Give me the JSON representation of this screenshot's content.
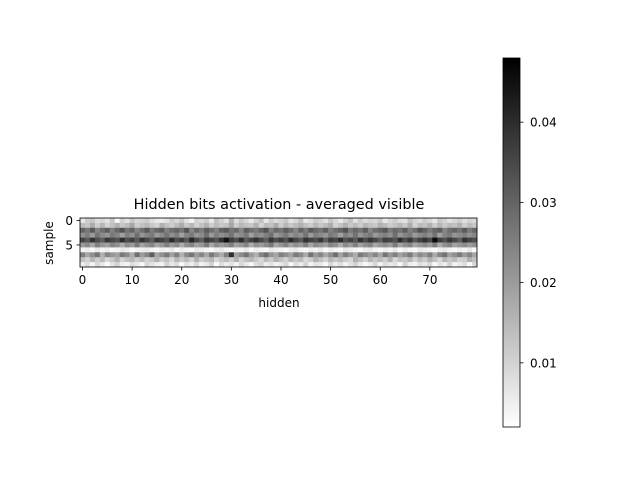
{
  "chart_data": {
    "type": "heatmap",
    "title": "Hidden bits activation - averaged visible",
    "xlabel": "hidden",
    "ylabel": "sample",
    "n_cols": 80,
    "n_rows": 10,
    "xticks": [
      0,
      10,
      20,
      30,
      40,
      50,
      60,
      70
    ],
    "yticks": [
      0,
      5
    ],
    "colormap": "gray_r",
    "value_range": [
      0.002,
      0.048
    ],
    "colorbar_ticks": [
      0.01,
      0.02,
      0.03,
      0.04
    ],
    "colorbar_tick_labels": [
      "0.01",
      "0.02",
      "0.03",
      "0.04"
    ],
    "rows": [
      [
        0.006,
        0.011,
        0.012,
        0.008,
        0.009,
        0.007,
        0.012,
        0.003,
        0.01,
        0.007,
        0.012,
        0.009,
        0.01,
        0.011,
        0.008,
        0.006,
        0.005,
        0.007,
        0.011,
        0.009,
        0.012,
        0.007,
        0.004,
        0.01,
        0.009,
        0.011,
        0.006,
        0.013,
        0.01,
        0.007,
        0.016,
        0.008,
        0.012,
        0.009,
        0.006,
        0.01,
        0.013,
        0.006,
        0.011,
        0.008,
        0.01,
        0.012,
        0.007,
        0.009,
        0.013,
        0.006,
        0.008,
        0.011,
        0.01,
        0.007,
        0.012,
        0.009,
        0.006,
        0.01,
        0.013,
        0.007,
        0.011,
        0.008,
        0.01,
        0.009,
        0.012,
        0.006,
        0.009,
        0.011,
        0.008,
        0.007,
        0.013,
        0.01,
        0.008,
        0.011,
        0.009,
        0.006,
        0.012,
        0.01,
        0.007,
        0.009,
        0.011,
        0.008,
        0.01,
        0.009
      ],
      [
        0.014,
        0.012,
        0.017,
        0.011,
        0.015,
        0.01,
        0.013,
        0.016,
        0.012,
        0.014,
        0.018,
        0.011,
        0.013,
        0.015,
        0.012,
        0.01,
        0.016,
        0.013,
        0.011,
        0.014,
        0.017,
        0.012,
        0.015,
        0.01,
        0.013,
        0.016,
        0.011,
        0.014,
        0.012,
        0.013,
        0.018,
        0.011,
        0.015,
        0.013,
        0.012,
        0.016,
        0.01,
        0.014,
        0.013,
        0.017,
        0.011,
        0.015,
        0.012,
        0.014,
        0.016,
        0.013,
        0.011,
        0.015,
        0.012,
        0.014,
        0.017,
        0.01,
        0.013,
        0.016,
        0.012,
        0.014,
        0.011,
        0.015,
        0.013,
        0.012,
        0.016,
        0.014,
        0.011,
        0.013,
        0.015,
        0.012,
        0.017,
        0.01,
        0.014,
        0.013,
        0.016,
        0.011,
        0.015,
        0.012,
        0.014,
        0.013,
        0.016,
        0.011,
        0.014,
        0.012
      ],
      [
        0.03,
        0.026,
        0.032,
        0.024,
        0.028,
        0.031,
        0.025,
        0.029,
        0.033,
        0.027,
        0.03,
        0.024,
        0.028,
        0.032,
        0.026,
        0.029,
        0.031,
        0.025,
        0.028,
        0.03,
        0.027,
        0.033,
        0.024,
        0.029,
        0.026,
        0.031,
        0.028,
        0.025,
        0.03,
        0.032,
        0.027,
        0.029,
        0.024,
        0.031,
        0.028,
        0.026,
        0.03,
        0.033,
        0.025,
        0.029,
        0.027,
        0.031,
        0.028,
        0.024,
        0.03,
        0.026,
        0.032,
        0.029,
        0.027,
        0.031,
        0.025,
        0.028,
        0.03,
        0.033,
        0.026,
        0.029,
        0.027,
        0.031,
        0.024,
        0.028,
        0.03,
        0.032,
        0.026,
        0.029,
        0.027,
        0.031,
        0.025,
        0.028,
        0.033,
        0.03,
        0.026,
        0.029,
        0.031,
        0.024,
        0.028,
        0.03,
        0.027,
        0.032,
        0.026,
        0.029
      ],
      [
        0.022,
        0.025,
        0.02,
        0.027,
        0.023,
        0.021,
        0.026,
        0.024,
        0.019,
        0.025,
        0.022,
        0.028,
        0.021,
        0.024,
        0.026,
        0.02,
        0.023,
        0.027,
        0.022,
        0.025,
        0.019,
        0.024,
        0.026,
        0.021,
        0.023,
        0.028,
        0.02,
        0.025,
        0.022,
        0.024,
        0.027,
        0.021,
        0.023,
        0.026,
        0.019,
        0.024,
        0.022,
        0.025,
        0.028,
        0.02,
        0.023,
        0.026,
        0.021,
        0.024,
        0.022,
        0.027,
        0.02,
        0.025,
        0.023,
        0.021,
        0.026,
        0.024,
        0.019,
        0.025,
        0.022,
        0.027,
        0.021,
        0.024,
        0.026,
        0.02,
        0.023,
        0.025,
        0.022,
        0.028,
        0.021,
        0.024,
        0.026,
        0.02,
        0.023,
        0.025,
        0.022,
        0.027,
        0.019,
        0.024,
        0.026,
        0.021,
        0.023,
        0.025,
        0.022,
        0.024
      ],
      [
        0.036,
        0.032,
        0.039,
        0.034,
        0.031,
        0.038,
        0.035,
        0.033,
        0.04,
        0.034,
        0.037,
        0.032,
        0.039,
        0.035,
        0.031,
        0.038,
        0.036,
        0.033,
        0.04,
        0.034,
        0.037,
        0.032,
        0.041,
        0.035,
        0.031,
        0.038,
        0.036,
        0.033,
        0.039,
        0.045,
        0.037,
        0.034,
        0.04,
        0.032,
        0.036,
        0.039,
        0.035,
        0.031,
        0.038,
        0.034,
        0.037,
        0.033,
        0.04,
        0.035,
        0.032,
        0.039,
        0.036,
        0.034,
        0.038,
        0.031,
        0.037,
        0.035,
        0.04,
        0.033,
        0.036,
        0.032,
        0.039,
        0.034,
        0.038,
        0.035,
        0.031,
        0.037,
        0.036,
        0.033,
        0.04,
        0.034,
        0.038,
        0.032,
        0.036,
        0.039,
        0.035,
        0.046,
        0.037,
        0.033,
        0.038,
        0.035,
        0.031,
        0.039,
        0.036,
        0.034
      ],
      [
        0.02,
        0.023,
        0.018,
        0.025,
        0.021,
        0.019,
        0.024,
        0.022,
        0.017,
        0.023,
        0.02,
        0.026,
        0.019,
        0.022,
        0.024,
        0.018,
        0.021,
        0.025,
        0.02,
        0.023,
        0.017,
        0.022,
        0.024,
        0.019,
        0.021,
        0.026,
        0.018,
        0.023,
        0.02,
        0.022,
        0.025,
        0.019,
        0.021,
        0.024,
        0.017,
        0.022,
        0.02,
        0.023,
        0.026,
        0.018,
        0.021,
        0.024,
        0.019,
        0.022,
        0.02,
        0.025,
        0.018,
        0.023,
        0.021,
        0.019,
        0.024,
        0.022,
        0.017,
        0.023,
        0.02,
        0.025,
        0.019,
        0.022,
        0.024,
        0.018,
        0.021,
        0.023,
        0.02,
        0.026,
        0.019,
        0.022,
        0.024,
        0.018,
        0.021,
        0.023,
        0.02,
        0.025,
        0.017,
        0.022,
        0.024,
        0.019,
        0.021,
        0.023,
        0.02,
        0.022
      ],
      [
        0.004,
        0.005,
        0.003,
        0.006,
        0.004,
        0.005,
        0.003,
        0.004,
        0.006,
        0.005,
        0.003,
        0.004,
        0.005,
        0.006,
        0.004,
        0.003,
        0.005,
        0.004,
        0.006,
        0.003,
        0.005,
        0.004,
        0.003,
        0.006,
        0.005,
        0.004,
        0.003,
        0.005,
        0.006,
        0.004,
        0.003,
        0.005,
        0.004,
        0.006,
        0.003,
        0.005,
        0.004,
        0.003,
        0.006,
        0.005,
        0.004,
        0.003,
        0.005,
        0.006,
        0.004,
        0.003,
        0.005,
        0.004,
        0.006,
        0.003,
        0.005,
        0.004,
        0.003,
        0.006,
        0.005,
        0.004,
        0.003,
        0.005,
        0.006,
        0.004,
        0.003,
        0.005,
        0.004,
        0.006,
        0.003,
        0.005,
        0.004,
        0.003,
        0.006,
        0.005,
        0.004,
        0.003,
        0.005,
        0.006,
        0.004,
        0.003,
        0.005,
        0.004,
        0.006,
        0.003
      ],
      [
        0.025,
        0.018,
        0.022,
        0.027,
        0.016,
        0.024,
        0.021,
        0.019,
        0.026,
        0.023,
        0.017,
        0.028,
        0.02,
        0.024,
        0.031,
        0.018,
        0.022,
        0.026,
        0.019,
        0.025,
        0.016,
        0.023,
        0.027,
        0.02,
        0.024,
        0.018,
        0.026,
        0.021,
        0.017,
        0.025,
        0.04,
        0.019,
        0.023,
        0.027,
        0.02,
        0.016,
        0.024,
        0.028,
        0.021,
        0.018,
        0.025,
        0.022,
        0.019,
        0.026,
        0.023,
        0.017,
        0.027,
        0.02,
        0.024,
        0.018,
        0.022,
        0.028,
        0.019,
        0.025,
        0.021,
        0.017,
        0.026,
        0.023,
        0.02,
        0.024,
        0.018,
        0.027,
        0.021,
        0.025,
        0.019,
        0.022,
        0.026,
        0.018,
        0.023,
        0.02,
        0.025,
        0.017,
        0.024,
        0.027,
        0.019,
        0.022,
        0.026,
        0.02,
        0.024,
        0.018
      ],
      [
        0.013,
        0.01,
        0.015,
        0.011,
        0.014,
        0.009,
        0.012,
        0.016,
        0.01,
        0.013,
        0.015,
        0.011,
        0.014,
        0.01,
        0.012,
        0.016,
        0.011,
        0.013,
        0.009,
        0.015,
        0.012,
        0.014,
        0.01,
        0.016,
        0.011,
        0.013,
        0.015,
        0.009,
        0.012,
        0.014,
        0.011,
        0.016,
        0.01,
        0.013,
        0.015,
        0.012,
        0.009,
        0.014,
        0.011,
        0.016,
        0.013,
        0.01,
        0.015,
        0.012,
        0.014,
        0.009,
        0.011,
        0.016,
        0.013,
        0.01,
        0.015,
        0.012,
        0.014,
        0.011,
        0.009,
        0.016,
        0.013,
        0.01,
        0.015,
        0.012,
        0.014,
        0.011,
        0.016,
        0.009,
        0.013,
        0.012,
        0.015,
        0.01,
        0.014,
        0.011,
        0.016,
        0.013,
        0.009,
        0.015,
        0.012,
        0.014,
        0.01,
        0.011,
        0.016,
        0.013
      ],
      [
        0.005,
        0.008,
        0.004,
        0.009,
        0.006,
        0.003,
        0.007,
        0.01,
        0.005,
        0.004,
        0.008,
        0.006,
        0.003,
        0.009,
        0.007,
        0.005,
        0.004,
        0.01,
        0.006,
        0.008,
        0.003,
        0.007,
        0.005,
        0.009,
        0.004,
        0.006,
        0.01,
        0.003,
        0.008,
        0.005,
        0.007,
        0.004,
        0.009,
        0.006,
        0.003,
        0.008,
        0.01,
        0.005,
        0.007,
        0.004,
        0.006,
        0.009,
        0.003,
        0.008,
        0.005,
        0.01,
        0.004,
        0.007,
        0.006,
        0.003,
        0.009,
        0.005,
        0.008,
        0.004,
        0.007,
        0.01,
        0.006,
        0.003,
        0.005,
        0.009,
        0.004,
        0.008,
        0.006,
        0.007,
        0.003,
        0.01,
        0.005,
        0.004,
        0.008,
        0.006,
        0.009,
        0.003,
        0.007,
        0.005,
        0.01,
        0.004,
        0.006,
        0.008,
        0.003,
        0.009
      ]
    ]
  }
}
